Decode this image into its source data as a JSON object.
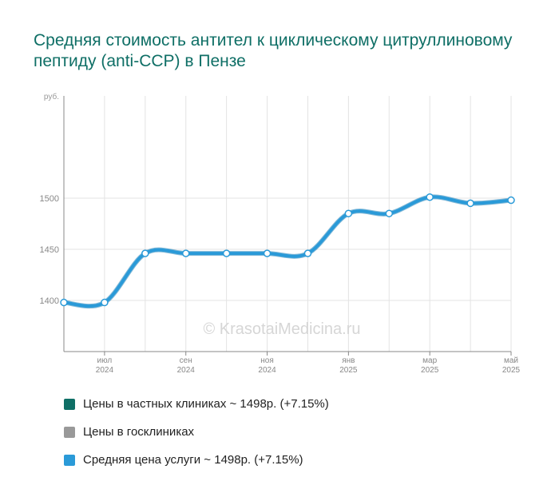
{
  "title": "Средняя стоимость антител к циклическому цитруллиновому пептиду (anti-CCP) в Пензе",
  "watermark": "© KrasotaiMedicina.ru",
  "legend": [
    {
      "label": "Цены в частных клиниках ~ 1498р. (+7.15%)",
      "color": "#0f6f66"
    },
    {
      "label": "Цены в госклиниках",
      "color": "#999999"
    },
    {
      "label": "Средняя цена услуги ~ 1498р. (+7.15%)",
      "color": "#2a9ad8"
    }
  ],
  "chart_data": {
    "type": "line",
    "ylabel": "руб.",
    "ylim": [
      1350,
      1600
    ],
    "yticks": [
      1400,
      1450,
      1500
    ],
    "x": [
      "2024-06",
      "2024-07",
      "2024-08",
      "2024-09",
      "2024-10",
      "2024-11",
      "2024-12",
      "2025-01",
      "2025-02",
      "2025-03",
      "2025-04",
      "2025-05"
    ],
    "xticks": [
      {
        "month": "июл",
        "year": "2024",
        "index": 1
      },
      {
        "month": "сен",
        "year": "2024",
        "index": 3
      },
      {
        "month": "ноя",
        "year": "2024",
        "index": 5
      },
      {
        "month": "янв",
        "year": "2025",
        "index": 7
      },
      {
        "month": "мар",
        "year": "2025",
        "index": 9
      },
      {
        "month": "май",
        "year": "2025",
        "index": 11
      }
    ],
    "grid": true,
    "series": [
      {
        "name": "Средняя цена услуги ~ 1498р. (+7.15%)",
        "color": "#2a9ad8",
        "values": [
          1398,
          1398,
          1446,
          1446,
          1446,
          1446,
          1446,
          1485,
          1485,
          1501,
          1495,
          1498
        ]
      }
    ]
  }
}
